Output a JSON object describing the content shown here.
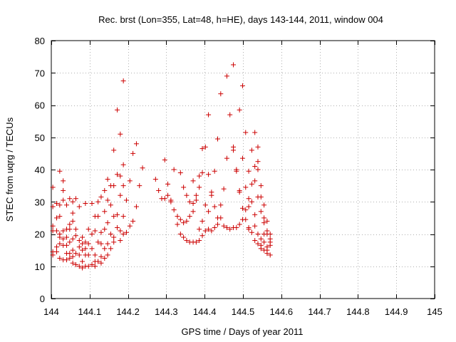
{
  "chart_data": {
    "type": "scatter",
    "title": "Rec. brst (Lon=355, Lat=48, h=HE), days 143-144, 2011, window 004",
    "xlabel": "GPS time / Days of year 2011",
    "ylabel": "STEC from uqrg / TECUs",
    "xlim": [
      144,
      145
    ],
    "ylim": [
      0,
      80
    ],
    "xticks": [
      "144",
      "144.1",
      "144.2",
      "144.3",
      "144.4",
      "144.5",
      "144.6",
      "144.7",
      "144.8",
      "144.9",
      "145"
    ],
    "yticks": [
      "0",
      "10",
      "20",
      "30",
      "40",
      "50",
      "60",
      "70",
      "80"
    ],
    "grid": true,
    "marker": "+",
    "color": "#cc0000",
    "series": [
      {
        "name": "STEC",
        "points": [
          [
            144.004,
            34.5
          ],
          [
            144.004,
            28.5
          ],
          [
            144.004,
            22.5
          ],
          [
            144.004,
            21
          ],
          [
            144.004,
            14.5
          ],
          [
            144.004,
            13.5
          ],
          [
            144.014,
            29.5
          ],
          [
            144.014,
            25
          ],
          [
            144.014,
            21
          ],
          [
            144.014,
            16
          ],
          [
            144.014,
            14.5
          ],
          [
            144.022,
            39.5
          ],
          [
            144.022,
            29
          ],
          [
            144.022,
            25.5
          ],
          [
            144.022,
            20
          ],
          [
            144.022,
            19
          ],
          [
            144.022,
            17
          ],
          [
            144.022,
            12.5
          ],
          [
            144.031,
            36.5
          ],
          [
            144.031,
            33.5
          ],
          [
            144.031,
            30.5
          ],
          [
            144.031,
            21
          ],
          [
            144.031,
            18.5
          ],
          [
            144.031,
            16.5
          ],
          [
            144.031,
            12
          ],
          [
            144.04,
            29
          ],
          [
            144.04,
            21.5
          ],
          [
            144.04,
            19
          ],
          [
            144.04,
            16.5
          ],
          [
            144.04,
            14
          ],
          [
            144.04,
            12
          ],
          [
            144.048,
            31
          ],
          [
            144.048,
            23
          ],
          [
            144.048,
            21.5
          ],
          [
            144.048,
            17.5
          ],
          [
            144.048,
            14
          ],
          [
            144.048,
            12.5
          ],
          [
            144.056,
            30
          ],
          [
            144.056,
            26.5
          ],
          [
            144.056,
            24
          ],
          [
            144.056,
            18.5
          ],
          [
            144.056,
            15
          ],
          [
            144.056,
            13
          ],
          [
            144.056,
            11
          ],
          [
            144.064,
            31
          ],
          [
            144.064,
            21.5
          ],
          [
            144.064,
            19.5
          ],
          [
            144.064,
            14
          ],
          [
            144.064,
            10.5
          ],
          [
            144.073,
            28.5
          ],
          [
            144.073,
            18
          ],
          [
            144.073,
            16
          ],
          [
            144.073,
            13.5
          ],
          [
            144.073,
            10
          ],
          [
            144.081,
            19
          ],
          [
            144.081,
            17
          ],
          [
            144.081,
            15
          ],
          [
            144.081,
            11.5
          ],
          [
            144.081,
            9.5
          ],
          [
            144.089,
            29.5
          ],
          [
            144.089,
            17.5
          ],
          [
            144.089,
            15.5
          ],
          [
            144.089,
            13.5
          ],
          [
            144.089,
            10
          ],
          [
            144.097,
            21.5
          ],
          [
            144.097,
            17
          ],
          [
            144.097,
            13.5
          ],
          [
            144.097,
            10
          ],
          [
            144.106,
            29.5
          ],
          [
            144.106,
            20
          ],
          [
            144.106,
            15.5
          ],
          [
            144.106,
            10.5
          ],
          [
            144.114,
            25.5
          ],
          [
            144.114,
            21
          ],
          [
            144.114,
            13.5
          ],
          [
            144.114,
            11.5
          ],
          [
            144.114,
            10
          ],
          [
            144.122,
            30
          ],
          [
            144.122,
            25.5
          ],
          [
            144.122,
            17.5
          ],
          [
            144.122,
            11.5
          ],
          [
            144.13,
            31.5
          ],
          [
            144.13,
            20.5
          ],
          [
            144.13,
            17
          ],
          [
            144.13,
            13
          ],
          [
            144.13,
            11
          ],
          [
            144.139,
            33.5
          ],
          [
            144.139,
            27
          ],
          [
            144.139,
            21.5
          ],
          [
            144.139,
            15.5
          ],
          [
            144.139,
            12.5
          ],
          [
            144.147,
            37
          ],
          [
            144.147,
            30.5
          ],
          [
            144.147,
            23.5
          ],
          [
            144.147,
            17
          ],
          [
            144.147,
            13.5
          ],
          [
            144.155,
            35
          ],
          [
            144.155,
            29
          ],
          [
            144.155,
            20
          ],
          [
            144.155,
            15.5
          ],
          [
            144.163,
            46
          ],
          [
            144.163,
            35
          ],
          [
            144.163,
            25.5
          ],
          [
            144.163,
            19
          ],
          [
            144.163,
            17.5
          ],
          [
            144.172,
            58.5
          ],
          [
            144.172,
            38.5
          ],
          [
            144.172,
            26
          ],
          [
            144.172,
            22
          ],
          [
            144.18,
            51
          ],
          [
            144.18,
            38
          ],
          [
            144.18,
            32
          ],
          [
            144.18,
            21
          ],
          [
            144.18,
            18
          ],
          [
            144.188,
            67.5
          ],
          [
            144.188,
            41.5
          ],
          [
            144.188,
            35
          ],
          [
            144.188,
            25.5
          ],
          [
            144.188,
            20
          ],
          [
            144.196,
            30.5
          ],
          [
            144.196,
            20.5
          ],
          [
            144.205,
            36.5
          ],
          [
            144.205,
            22.5
          ],
          [
            144.213,
            45
          ],
          [
            144.213,
            24
          ],
          [
            144.222,
            48
          ],
          [
            144.222,
            28.5
          ],
          [
            144.23,
            35
          ],
          [
            144.238,
            40.5
          ],
          [
            144.272,
            37
          ],
          [
            144.28,
            33.5
          ],
          [
            144.288,
            31
          ],
          [
            144.296,
            43
          ],
          [
            144.296,
            31
          ],
          [
            144.304,
            35.5
          ],
          [
            144.304,
            32
          ],
          [
            144.312,
            30.5
          ],
          [
            144.312,
            30
          ],
          [
            144.32,
            40
          ],
          [
            144.32,
            27.5
          ],
          [
            144.329,
            25.5
          ],
          [
            144.329,
            23
          ],
          [
            144.337,
            39
          ],
          [
            144.337,
            24.5
          ],
          [
            144.337,
            20
          ],
          [
            144.345,
            34.5
          ],
          [
            144.345,
            23.5
          ],
          [
            144.345,
            19
          ],
          [
            144.353,
            32
          ],
          [
            144.353,
            24
          ],
          [
            144.353,
            18
          ],
          [
            144.361,
            30
          ],
          [
            144.361,
            25.5
          ],
          [
            144.361,
            17.5
          ],
          [
            144.37,
            36.5
          ],
          [
            144.37,
            29.5
          ],
          [
            144.37,
            27
          ],
          [
            144.37,
            17.5
          ],
          [
            144.378,
            32
          ],
          [
            144.378,
            30.5
          ],
          [
            144.378,
            17.5
          ],
          [
            144.386,
            38
          ],
          [
            144.386,
            34.5
          ],
          [
            144.386,
            21.5
          ],
          [
            144.386,
            18
          ],
          [
            144.394,
            46.5
          ],
          [
            144.394,
            39
          ],
          [
            144.394,
            24
          ],
          [
            144.394,
            19.5
          ],
          [
            144.402,
            47
          ],
          [
            144.402,
            29
          ],
          [
            144.402,
            21
          ],
          [
            144.41,
            57
          ],
          [
            144.41,
            38.5
          ],
          [
            144.41,
            27
          ],
          [
            144.41,
            21.5
          ],
          [
            144.418,
            33
          ],
          [
            144.418,
            32
          ],
          [
            144.418,
            21
          ],
          [
            144.426,
            39.5
          ],
          [
            144.426,
            28.5
          ],
          [
            144.426,
            22
          ],
          [
            144.434,
            49.5
          ],
          [
            144.434,
            25
          ],
          [
            144.434,
            23
          ],
          [
            144.442,
            63.5
          ],
          [
            144.442,
            29
          ],
          [
            144.442,
            25
          ],
          [
            144.45,
            34
          ],
          [
            144.45,
            22.5
          ],
          [
            144.458,
            69
          ],
          [
            144.458,
            43.5
          ],
          [
            144.458,
            22
          ],
          [
            144.466,
            57
          ],
          [
            144.466,
            21.5
          ],
          [
            144.475,
            72.5
          ],
          [
            144.475,
            47
          ],
          [
            144.475,
            46
          ],
          [
            144.475,
            22
          ],
          [
            144.483,
            40
          ],
          [
            144.483,
            39.5
          ],
          [
            144.483,
            22
          ],
          [
            144.491,
            58.5
          ],
          [
            144.491,
            33.5
          ],
          [
            144.491,
            33
          ],
          [
            144.491,
            23
          ],
          [
            144.499,
            66
          ],
          [
            144.499,
            43.5
          ],
          [
            144.499,
            28
          ],
          [
            144.499,
            24.5
          ],
          [
            144.507,
            51.5
          ],
          [
            144.507,
            34.5
          ],
          [
            144.507,
            27.5
          ],
          [
            144.507,
            24.5
          ],
          [
            144.515,
            39.5
          ],
          [
            144.515,
            31
          ],
          [
            144.515,
            28.5
          ],
          [
            144.515,
            22
          ],
          [
            144.515,
            21.5
          ],
          [
            144.523,
            46
          ],
          [
            144.523,
            35.5
          ],
          [
            144.523,
            30
          ],
          [
            144.523,
            20.5
          ],
          [
            144.531,
            51.5
          ],
          [
            144.531,
            41
          ],
          [
            144.531,
            36.5
          ],
          [
            144.531,
            26
          ],
          [
            144.531,
            22.5
          ],
          [
            144.531,
            18
          ],
          [
            144.539,
            47
          ],
          [
            144.539,
            42.5
          ],
          [
            144.539,
            40
          ],
          [
            144.539,
            31.5
          ],
          [
            144.539,
            20
          ],
          [
            144.539,
            17
          ],
          [
            144.547,
            35
          ],
          [
            144.547,
            31.5
          ],
          [
            144.547,
            27
          ],
          [
            144.547,
            18.5
          ],
          [
            144.547,
            16.5
          ],
          [
            144.547,
            15.5
          ],
          [
            144.555,
            29
          ],
          [
            144.555,
            25
          ],
          [
            144.555,
            23.5
          ],
          [
            144.555,
            20
          ],
          [
            144.555,
            17.5
          ],
          [
            144.555,
            15
          ],
          [
            144.563,
            24
          ],
          [
            144.563,
            21
          ],
          [
            144.563,
            20
          ],
          [
            144.563,
            16
          ],
          [
            144.563,
            15
          ],
          [
            144.563,
            14
          ],
          [
            144.571,
            20
          ],
          [
            144.571,
            18.5
          ],
          [
            144.571,
            17.5
          ],
          [
            144.571,
            16.5
          ],
          [
            144.571,
            13.5
          ]
        ]
      }
    ]
  }
}
